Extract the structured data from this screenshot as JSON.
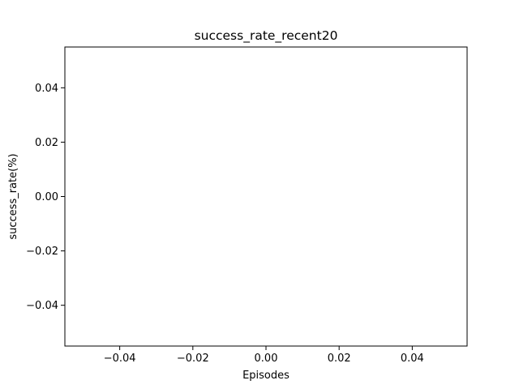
{
  "chart_data": {
    "type": "line",
    "title": "success_rate_recent20",
    "xlabel": "Episodes",
    "ylabel": "success_rate(%)",
    "xlim": [
      -0.055,
      0.055
    ],
    "ylim": [
      -0.055,
      0.055
    ],
    "x_ticks": [
      -0.04,
      -0.02,
      0.0,
      0.02,
      0.04
    ],
    "x_tick_labels": [
      "−0.04",
      "−0.02",
      "0.00",
      "0.02",
      "0.04"
    ],
    "y_ticks": [
      -0.04,
      -0.02,
      0.0,
      0.02,
      0.04
    ],
    "y_tick_labels": [
      "−0.04",
      "−0.02",
      "0.00",
      "0.02",
      "0.04"
    ],
    "grid": false,
    "series": [
      {
        "x": [],
        "y": []
      }
    ]
  }
}
